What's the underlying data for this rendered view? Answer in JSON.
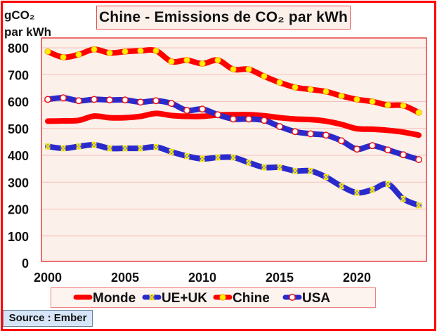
{
  "chart_data": {
    "type": "line",
    "title": "Chine - Emissions de CO₂ par kWh",
    "ylabel_line1": "gCO₂",
    "ylabel_line2": "par kWh",
    "xlabel": "",
    "xlim": [
      2000,
      2024
    ],
    "ylim": [
      0,
      800
    ],
    "yticks": [
      0,
      100,
      200,
      300,
      400,
      500,
      600,
      700,
      800
    ],
    "xticks": [
      2000,
      2005,
      2010,
      2015,
      2020
    ],
    "grid": true,
    "legend_position": "bottom",
    "source": "Source : Ember",
    "x": [
      2000,
      2001,
      2002,
      2003,
      2004,
      2005,
      2006,
      2007,
      2008,
      2009,
      2010,
      2011,
      2012,
      2013,
      2014,
      2015,
      2016,
      2017,
      2018,
      2019,
      2020,
      2021,
      2022,
      2023,
      2024
    ],
    "series": [
      {
        "name": "Monde",
        "color": "#ff0000",
        "marker": "none",
        "values": [
          527,
          528,
          530,
          546,
          540,
          540,
          545,
          556,
          548,
          545,
          545,
          550,
          551,
          551,
          547,
          540,
          535,
          533,
          527,
          515,
          499,
          497,
          493,
          486,
          475
        ]
      },
      {
        "name": "UE+UK",
        "color": "#2a2acc",
        "marker": "x-yellow",
        "values": [
          433,
          426,
          433,
          439,
          426,
          426,
          426,
          431,
          413,
          397,
          387,
          392,
          392,
          373,
          355,
          355,
          342,
          342,
          319,
          285,
          261,
          272,
          293,
          238,
          214
        ]
      },
      {
        "name": "Chine",
        "color": "#ff0000",
        "marker": "circle-yellow",
        "values": [
          786,
          765,
          775,
          794,
          781,
          786,
          789,
          789,
          749,
          754,
          741,
          754,
          720,
          720,
          694,
          671,
          653,
          645,
          637,
          621,
          608,
          600,
          587,
          585,
          559
        ]
      },
      {
        "name": "USA",
        "color": "#2a2acc",
        "marker": "circle-white",
        "values": [
          608,
          614,
          603,
          608,
          606,
          606,
          598,
          603,
          593,
          567,
          572,
          551,
          535,
          535,
          530,
          507,
          488,
          480,
          475,
          454,
          423,
          436,
          420,
          402,
          384
        ]
      }
    ]
  }
}
